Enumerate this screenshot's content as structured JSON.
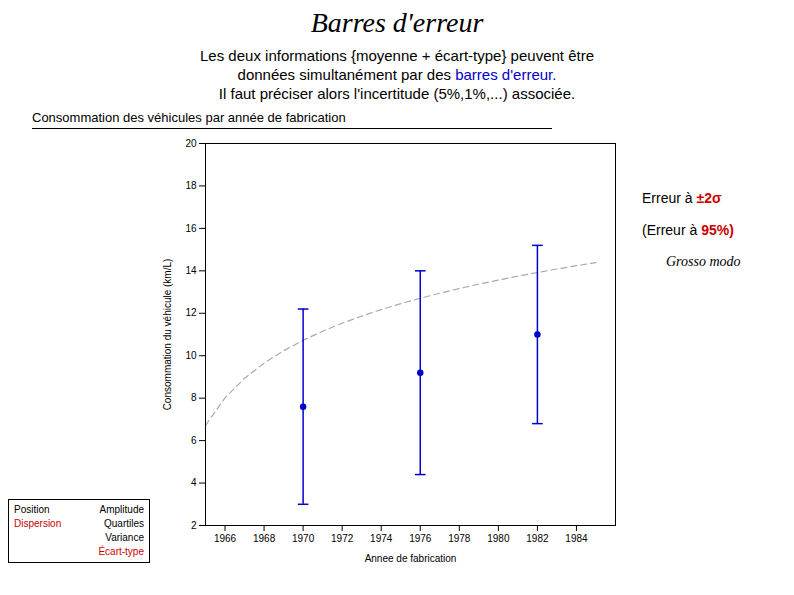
{
  "chart_data": {
    "type": "scatter",
    "title": "Barres d'erreur",
    "subtitle": [
      [
        {
          "text": "Les deux informations {moyenne + écart-type} peuvent être",
          "color": "#000000"
        }
      ],
      [
        {
          "text": "données simultanément par des ",
          "color": "#000000"
        },
        {
          "text": "barres d'erreur.",
          "color": "#0000cc"
        }
      ],
      [
        {
          "text": "Il faut préciser alors l'incertitude (5%,1%,...) associée.",
          "color": "#000000"
        }
      ]
    ],
    "section_title": "Consommation des véhicules par année de fabrication",
    "xlabel": "Annee de fabrication",
    "ylabel": "Consommation du véhicule (km/L)",
    "xlim": [
      1965,
      1986
    ],
    "ylim": [
      2,
      20
    ],
    "xticks": [
      1966,
      1968,
      1970,
      1972,
      1974,
      1976,
      1978,
      1980,
      1982,
      1984
    ],
    "yticks": [
      2,
      4,
      6,
      8,
      10,
      12,
      14,
      16,
      18,
      20
    ],
    "grid": false,
    "series": [
      {
        "type": "line",
        "line_style": "dashed",
        "color": "#aaaaaa",
        "x": [
          1965,
          1966,
          1967,
          1968,
          1969,
          1970,
          1971,
          1972,
          1973,
          1974,
          1975,
          1976,
          1977,
          1978,
          1979,
          1980,
          1981,
          1982,
          1983,
          1984,
          1985
        ],
        "values": [
          6.718,
          8.016,
          8.936,
          9.65,
          10.234,
          10.727,
          11.154,
          11.531,
          11.868,
          12.173,
          12.452,
          12.708,
          12.945,
          13.166,
          13.372,
          13.566,
          13.749,
          13.922,
          14.086,
          14.242,
          14.391
        ]
      },
      {
        "type": "scatter",
        "marker": "circle",
        "color": "#0000cc",
        "x": [
          1970,
          1976,
          1982
        ],
        "values": [
          7.6,
          9.2,
          11.0
        ],
        "error": [
          4.6,
          4.8,
          4.2
        ]
      }
    ],
    "annotations": [
      [
        {
          "text": "Erreur à ",
          "color": "#000000"
        },
        {
          "text": "±2σ",
          "color": "#cc0000"
        }
      ],
      [
        {
          "text": "(Erreur à ",
          "color": "#000000"
        },
        {
          "text": "95%)",
          "color": "#cc0000"
        }
      ],
      [
        {
          "text": "Grosso modo",
          "color": "#000000"
        }
      ]
    ],
    "box": [
      [
        {
          "text": "Position",
          "color": "#000000"
        },
        {
          "text": "Amplitude",
          "color": "#000000"
        }
      ],
      [
        {
          "text": "Dispersion",
          "color": "#cc0000"
        },
        {
          "text": "Quartiles",
          "color": "#000000"
        }
      ],
      [
        null,
        {
          "text": "Variance",
          "color": "#000000"
        }
      ],
      [
        null,
        {
          "text": "Écart-type",
          "color": "#cc0000"
        }
      ]
    ]
  }
}
